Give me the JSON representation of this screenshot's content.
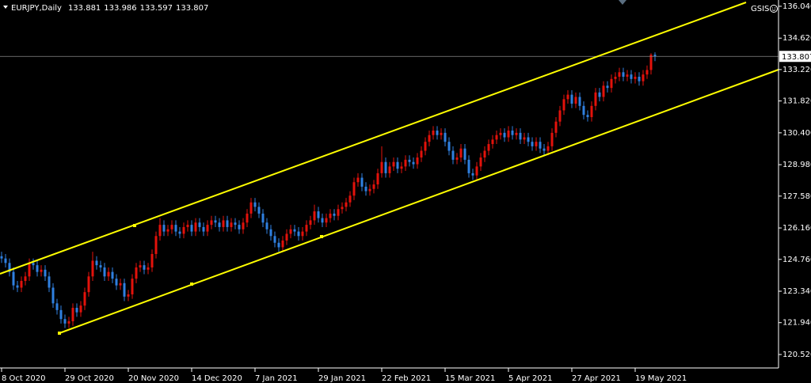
{
  "chart_data": {
    "type": "candlestick",
    "symbol": "EURJPY,Daily",
    "expert": "GSIS",
    "up_color": "#e3120b",
    "down_color": "#2f80e0",
    "open": [
      124.9,
      124.8,
      124.6,
      124.2,
      123.6,
      123.5,
      123.8,
      124.0,
      124.6,
      124.5,
      124.2,
      124.3,
      124.0,
      123.5,
      122.8,
      122.5,
      122.1,
      121.9,
      122.0,
      122.6,
      122.4,
      122.7,
      123.3,
      124.0,
      124.7,
      124.5,
      124.4,
      124.0,
      124.2,
      123.9,
      123.6,
      123.7,
      123.1,
      123.2,
      123.9,
      124.4,
      124.5,
      124.3,
      124.4,
      125.0,
      125.8,
      126.3,
      126.0,
      126.1,
      126.3,
      126.0,
      125.9,
      126.2,
      126.3,
      126.0,
      126.4,
      126.2,
      126.0,
      126.3,
      126.5,
      126.4,
      126.2,
      126.5,
      126.2,
      126.4,
      126.3,
      126.1,
      126.4,
      126.8,
      127.3,
      127.1,
      126.8,
      126.4,
      126.1,
      125.8,
      125.5,
      125.3,
      125.6,
      125.9,
      126.1,
      126.0,
      125.8,
      126.0,
      126.3,
      126.5,
      126.9,
      126.6,
      126.4,
      126.6,
      126.8,
      126.7,
      127.0,
      127.1,
      127.3,
      127.6,
      128.2,
      128.4,
      128.0,
      127.8,
      127.9,
      128.1,
      128.6,
      129.1,
      128.6,
      128.9,
      129.1,
      128.8,
      128.9,
      129.2,
      129.1,
      129.0,
      129.3,
      129.6,
      130.0,
      130.3,
      130.5,
      130.3,
      130.4,
      130.0,
      129.6,
      129.2,
      129.3,
      129.7,
      129.2,
      128.6,
      128.5,
      128.9,
      129.3,
      129.6,
      129.9,
      130.1,
      130.3,
      130.4,
      130.2,
      130.5,
      130.3,
      130.4,
      130.1,
      130.2,
      130.0,
      129.8,
      130.0,
      129.7,
      129.6,
      129.8,
      130.4,
      130.9,
      131.4,
      131.9,
      132.1,
      131.7,
      132.0,
      131.6,
      131.2,
      131.1,
      131.6,
      132.2,
      132.0,
      132.5,
      132.4,
      132.8,
      132.9,
      133.1,
      132.9,
      133.0,
      132.8,
      132.9,
      132.7,
      133.0,
      133.2,
      133.881
    ],
    "high": [
      125.1,
      125.0,
      124.8,
      124.4,
      123.8,
      124.0,
      124.2,
      124.8,
      124.8,
      124.7,
      124.5,
      124.5,
      124.2,
      123.7,
      123.0,
      122.7,
      122.3,
      122.2,
      122.8,
      122.8,
      122.9,
      123.5,
      124.2,
      125.1,
      124.9,
      124.7,
      124.6,
      124.4,
      124.4,
      124.1,
      123.9,
      123.9,
      123.4,
      124.1,
      124.6,
      124.7,
      124.7,
      124.6,
      125.2,
      126.0,
      126.6,
      126.5,
      126.3,
      126.5,
      126.5,
      126.2,
      126.4,
      126.5,
      126.5,
      126.6,
      126.6,
      126.4,
      126.5,
      126.7,
      126.7,
      126.6,
      126.7,
      126.7,
      126.6,
      126.6,
      126.5,
      126.6,
      127.0,
      127.5,
      127.5,
      127.3,
      127.0,
      126.6,
      126.3,
      126.0,
      125.7,
      125.8,
      126.1,
      126.3,
      126.3,
      126.2,
      126.2,
      126.5,
      126.7,
      127.2,
      127.1,
      126.8,
      126.8,
      127.0,
      127.0,
      127.2,
      127.3,
      127.5,
      127.8,
      128.4,
      128.6,
      128.6,
      128.2,
      128.1,
      128.3,
      128.8,
      129.8,
      129.3,
      129.1,
      129.3,
      129.3,
      129.1,
      129.4,
      129.4,
      129.3,
      129.5,
      129.8,
      130.2,
      130.5,
      130.7,
      130.7,
      130.6,
      130.6,
      130.2,
      129.8,
      129.5,
      129.9,
      129.9,
      129.4,
      128.8,
      129.1,
      129.5,
      129.8,
      130.1,
      130.3,
      130.5,
      130.6,
      130.6,
      130.7,
      130.7,
      130.6,
      130.6,
      130.4,
      130.4,
      130.2,
      130.2,
      130.2,
      129.9,
      130.0,
      130.6,
      131.1,
      131.6,
      132.1,
      132.3,
      132.3,
      132.2,
      132.2,
      131.8,
      131.4,
      131.8,
      132.4,
      132.4,
      132.7,
      132.7,
      133.0,
      133.1,
      133.3,
      133.3,
      133.2,
      133.2,
      133.1,
      133.1,
      133.2,
      133.4,
      133.95,
      133.986
    ],
    "low": [
      124.6,
      124.4,
      124.0,
      123.4,
      123.3,
      123.3,
      123.6,
      123.8,
      124.3,
      124.0,
      124.0,
      123.8,
      123.3,
      122.6,
      122.3,
      121.9,
      121.7,
      121.7,
      121.8,
      122.2,
      122.2,
      122.5,
      123.1,
      123.8,
      124.3,
      124.2,
      123.8,
      123.8,
      123.7,
      123.4,
      123.4,
      122.9,
      122.9,
      123.0,
      123.7,
      124.2,
      124.1,
      124.1,
      124.2,
      124.8,
      125.6,
      125.8,
      125.8,
      125.9,
      125.8,
      125.7,
      125.7,
      126.0,
      125.8,
      125.8,
      126.0,
      125.8,
      125.8,
      126.1,
      126.2,
      126.0,
      126.0,
      126.0,
      126.0,
      126.1,
      125.9,
      125.9,
      126.2,
      126.6,
      126.9,
      126.6,
      126.2,
      125.9,
      125.6,
      125.3,
      125.1,
      125.1,
      125.4,
      125.7,
      125.8,
      125.6,
      125.6,
      125.8,
      126.1,
      126.3,
      126.4,
      126.2,
      126.2,
      126.4,
      126.5,
      126.5,
      126.8,
      126.9,
      127.1,
      127.4,
      128.0,
      127.8,
      127.6,
      127.6,
      127.7,
      127.9,
      128.4,
      128.4,
      128.4,
      128.7,
      128.6,
      128.6,
      128.7,
      128.9,
      128.8,
      128.8,
      129.1,
      129.4,
      129.8,
      130.1,
      130.1,
      130.1,
      129.8,
      129.4,
      129.0,
      129.0,
      129.1,
      129.0,
      128.4,
      128.3,
      128.3,
      128.7,
      129.1,
      129.4,
      129.7,
      129.9,
      130.1,
      130.0,
      130.0,
      130.1,
      130.1,
      129.9,
      129.9,
      129.8,
      129.6,
      129.6,
      129.5,
      129.4,
      129.4,
      129.6,
      130.2,
      130.7,
      131.2,
      131.7,
      131.5,
      131.5,
      131.4,
      131.0,
      130.9,
      130.9,
      131.4,
      131.8,
      131.8,
      132.2,
      132.2,
      132.6,
      132.7,
      132.7,
      132.7,
      132.6,
      132.6,
      132.5,
      132.5,
      132.8,
      133.0,
      133.597
    ],
    "close": [
      124.8,
      124.6,
      124.2,
      123.6,
      123.5,
      123.8,
      124.0,
      124.6,
      124.5,
      124.2,
      124.3,
      124.0,
      123.5,
      122.8,
      122.5,
      122.1,
      121.9,
      122.0,
      122.6,
      122.4,
      122.7,
      123.3,
      124.0,
      124.7,
      124.5,
      124.4,
      124.0,
      124.2,
      123.9,
      123.6,
      123.7,
      123.1,
      123.2,
      123.9,
      124.4,
      124.5,
      124.3,
      124.4,
      125.0,
      125.8,
      126.3,
      126.0,
      126.1,
      126.3,
      126.0,
      125.9,
      126.2,
      126.3,
      126.0,
      126.4,
      126.2,
      126.0,
      126.3,
      126.5,
      126.4,
      126.2,
      126.5,
      126.2,
      126.4,
      126.3,
      126.1,
      126.4,
      126.8,
      127.3,
      127.1,
      126.8,
      126.4,
      126.1,
      125.8,
      125.5,
      125.3,
      125.6,
      125.9,
      126.1,
      126.0,
      125.8,
      126.0,
      126.3,
      126.5,
      126.9,
      126.6,
      126.4,
      126.6,
      126.8,
      126.7,
      127.0,
      127.1,
      127.3,
      127.6,
      128.2,
      128.4,
      128.0,
      127.8,
      127.9,
      128.1,
      128.6,
      129.1,
      128.6,
      128.9,
      129.1,
      128.8,
      128.9,
      129.2,
      129.1,
      129.0,
      129.3,
      129.6,
      130.0,
      130.3,
      130.5,
      130.3,
      130.4,
      130.0,
      129.6,
      129.2,
      129.3,
      129.7,
      129.2,
      128.6,
      128.5,
      128.9,
      129.3,
      129.6,
      129.9,
      130.1,
      130.3,
      130.4,
      130.2,
      130.5,
      130.3,
      130.4,
      130.1,
      130.2,
      130.0,
      129.8,
      130.0,
      129.7,
      129.6,
      129.8,
      130.4,
      130.9,
      131.4,
      131.9,
      132.1,
      131.7,
      132.0,
      131.6,
      131.2,
      131.1,
      131.6,
      132.2,
      132.0,
      132.5,
      132.4,
      132.8,
      132.9,
      133.1,
      132.9,
      133.0,
      132.8,
      132.9,
      132.7,
      133.0,
      133.2,
      133.88,
      133.807
    ],
    "xlim": [
      -0.4,
      196.2
    ],
    "xticks": [
      {
        "value": 0,
        "label": "8 Oct 2020"
      },
      {
        "value": 16,
        "label": "29 Oct 2020"
      },
      {
        "value": 32,
        "label": "20 Nov 2020"
      },
      {
        "value": 48,
        "label": "14 Dec 2020"
      },
      {
        "value": 64,
        "label": "7 Jan 2021"
      },
      {
        "value": 80,
        "label": "29 Jan 2021"
      },
      {
        "value": 96,
        "label": "22 Feb 2021"
      },
      {
        "value": 112,
        "label": "15 Mar 2021"
      },
      {
        "value": 128,
        "label": "5 Apr 2021"
      },
      {
        "value": 144,
        "label": "27 Apr 2021"
      },
      {
        "value": 160,
        "label": "19 May 2021"
      }
    ],
    "ylim": [
      119.92,
      136.32
    ],
    "yticks": [
      {
        "value": 136.04,
        "label": "136.040"
      },
      {
        "value": 134.62,
        "label": "134.620"
      },
      {
        "value": 133.22,
        "label": "133.220"
      },
      {
        "value": 131.82,
        "label": "131.820"
      },
      {
        "value": 130.4,
        "label": "130.400"
      },
      {
        "value": 128.98,
        "label": "128.980"
      },
      {
        "value": 127.58,
        "label": "127.580"
      },
      {
        "value": 126.16,
        "label": "126.160"
      },
      {
        "value": 124.76,
        "label": "124.760"
      },
      {
        "value": 123.34,
        "label": "123.340"
      },
      {
        "value": 121.94,
        "label": "121.940"
      },
      {
        "value": 120.52,
        "label": "120.520"
      }
    ]
  }
}
